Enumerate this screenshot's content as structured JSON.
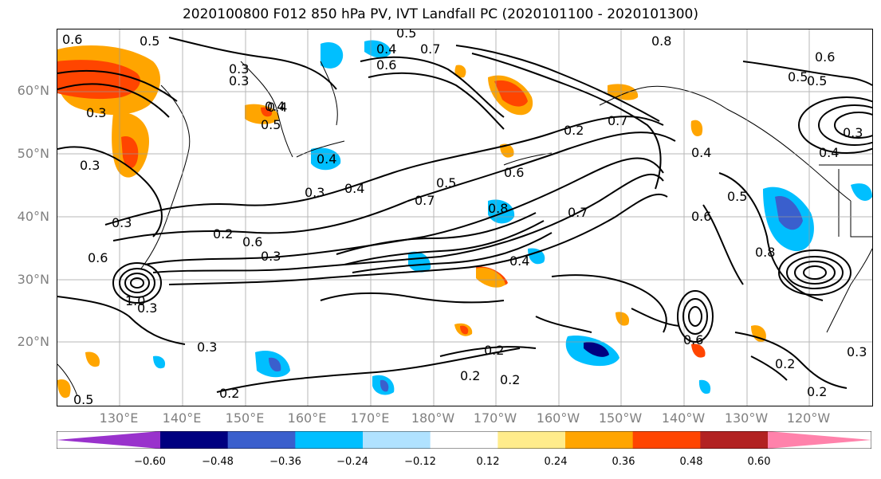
{
  "title": "2020100800 F012 850 hPa PV, IVT Landfall PC (2020101100 - 2020101300)",
  "map": {
    "lat_labels": [
      "60°N",
      "50°N",
      "40°N",
      "30°N",
      "20°N"
    ],
    "lon_labels": [
      "130°E",
      "140°E",
      "150°E",
      "160°E",
      "170°E",
      "180°W",
      "170°W",
      "160°W",
      "150°W",
      "140°W",
      "130°W",
      "120°W"
    ],
    "contour_labels": [
      "0.5",
      "0.6",
      "0.3",
      "0.4",
      "0.3",
      "0.2",
      "0.3",
      "0.3",
      "0.6",
      "0.3",
      "1.0",
      "0.6",
      "0.3",
      "0.4",
      "0.5",
      "0.6",
      "0.4",
      "0.3",
      "0.4",
      "0.5",
      "0.6",
      "0.7",
      "0.8",
      "0.7",
      "0.8",
      "0.4",
      "0.5",
      "0.4",
      "0.5",
      "0.6",
      "0.7",
      "0.4",
      "0.5",
      "0.6",
      "0.8",
      "0.5",
      "0.2",
      "0.2",
      "0.2",
      "0.3",
      "0.2",
      "0.2",
      "0.3",
      "0.2",
      "0.6",
      "0.3",
      "0.5",
      "0.7",
      "0.4",
      "0.2",
      "0.3"
    ]
  },
  "colorbar": {
    "colors": [
      "#9932cc",
      "#000080",
      "#3a5fcd",
      "#00bfff",
      "#b0e2ff",
      "#ffffff",
      "#ffec8b",
      "#ffa500",
      "#ff4500",
      "#b22222",
      "#ff82ab"
    ],
    "tick_labels": [
      "−0.60",
      "−0.48",
      "−0.36",
      "−0.24",
      "−0.12",
      "0.12",
      "0.24",
      "0.36",
      "0.48",
      "0.60"
    ]
  }
}
